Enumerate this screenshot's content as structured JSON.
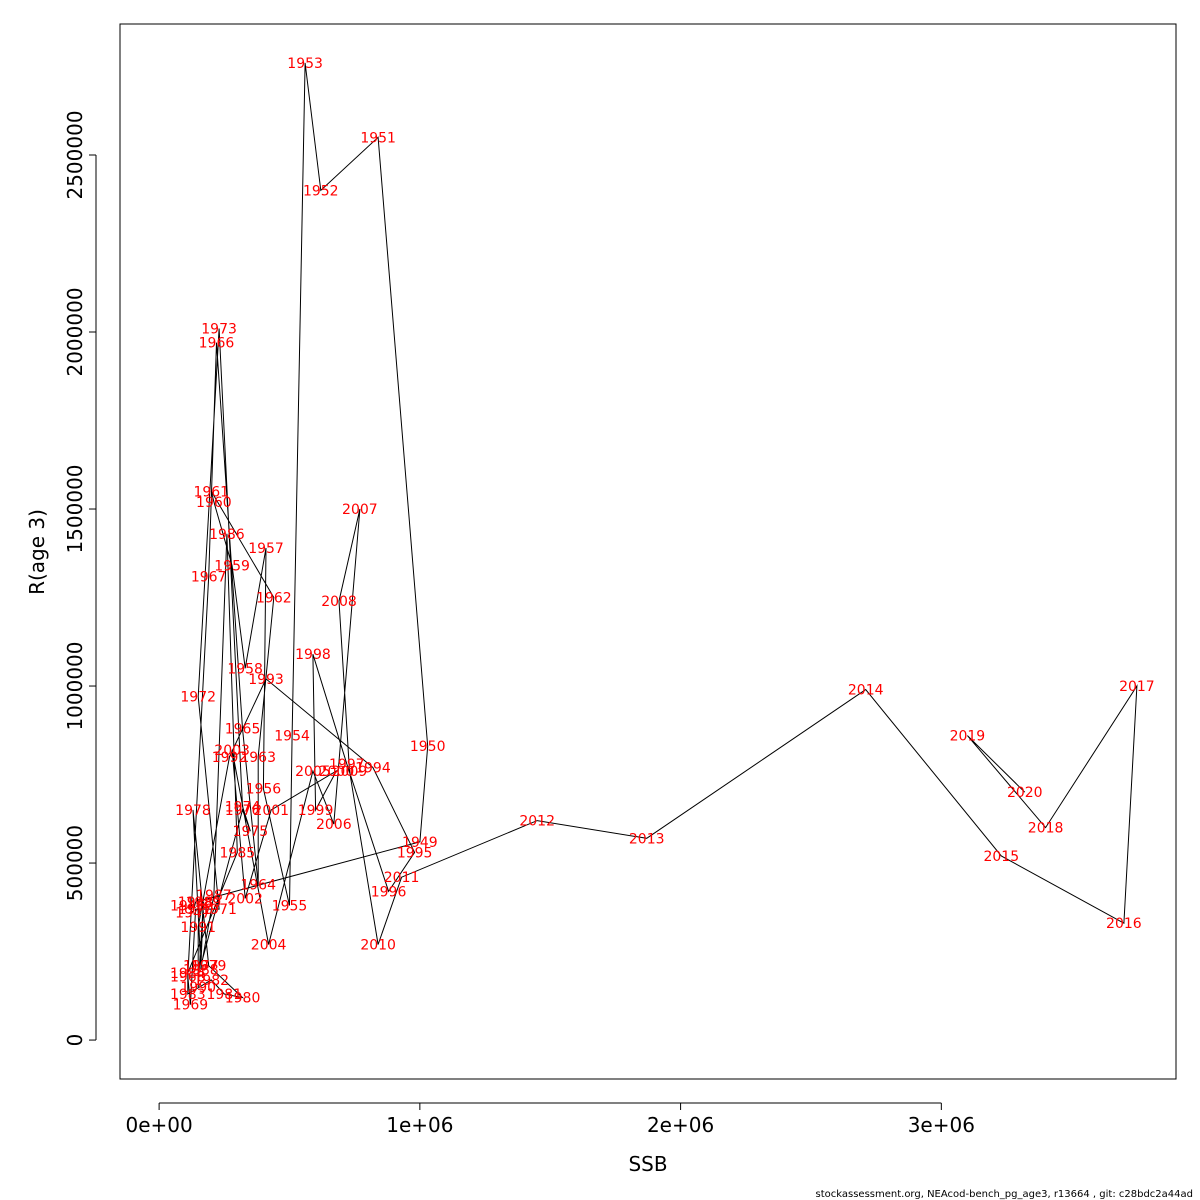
{
  "chart_data": {
    "type": "line",
    "xlabel": "SSB",
    "ylabel": "R(age 3)",
    "xlim": [
      -150000,
      3900000
    ],
    "ylim": [
      -110000,
      2870000
    ],
    "x_ticks": [
      {
        "value": 0,
        "label": "0e+00"
      },
      {
        "value": 1000000,
        "label": "1e+06"
      },
      {
        "value": 2000000,
        "label": "2e+06"
      },
      {
        "value": 3000000,
        "label": "3e+06"
      }
    ],
    "y_ticks": [
      {
        "value": 0,
        "label": "0"
      },
      {
        "value": 500000,
        "label": "500000"
      },
      {
        "value": 1000000,
        "label": "1000000"
      },
      {
        "value": 1500000,
        "label": "1500000"
      },
      {
        "value": 2000000,
        "label": "2000000"
      },
      {
        "value": 2500000,
        "label": "2500000"
      }
    ],
    "points": [
      {
        "year": "1946",
        "x": 110000,
        "y": 380000
      },
      {
        "year": "1947",
        "x": 130000,
        "y": 360000
      },
      {
        "year": "1948",
        "x": 140000,
        "y": 390000
      },
      {
        "year": "1949",
        "x": 1000000,
        "y": 560000
      },
      {
        "year": "1950",
        "x": 1030000,
        "y": 830000
      },
      {
        "year": "1951",
        "x": 840000,
        "y": 2550000
      },
      {
        "year": "1952",
        "x": 620000,
        "y": 2400000
      },
      {
        "year": "1953",
        "x": 560000,
        "y": 2760000
      },
      {
        "year": "1954",
        "x": 510000,
        "y": 860000
      },
      {
        "year": "1955",
        "x": 500000,
        "y": 380000
      },
      {
        "year": "1956",
        "x": 400000,
        "y": 710000
      },
      {
        "year": "1957",
        "x": 410000,
        "y": 1390000
      },
      {
        "year": "1958",
        "x": 330000,
        "y": 1050000
      },
      {
        "year": "1959",
        "x": 280000,
        "y": 1340000
      },
      {
        "year": "1960",
        "x": 210000,
        "y": 1520000
      },
      {
        "year": "1961",
        "x": 200000,
        "y": 1550000
      },
      {
        "year": "1962",
        "x": 440000,
        "y": 1250000
      },
      {
        "year": "1963",
        "x": 380000,
        "y": 800000
      },
      {
        "year": "1964",
        "x": 380000,
        "y": 440000
      },
      {
        "year": "1965",
        "x": 320000,
        "y": 880000
      },
      {
        "year": "1966",
        "x": 220000,
        "y": 1970000
      },
      {
        "year": "1967",
        "x": 190000,
        "y": 1310000
      },
      {
        "year": "1968",
        "x": 110000,
        "y": 180000
      },
      {
        "year": "1969",
        "x": 120000,
        "y": 100000
      },
      {
        "year": "1970",
        "x": 140000,
        "y": 370000
      },
      {
        "year": "1971",
        "x": 230000,
        "y": 370000
      },
      {
        "year": "1972",
        "x": 150000,
        "y": 970000
      },
      {
        "year": "1973",
        "x": 230000,
        "y": 2010000
      },
      {
        "year": "1974",
        "x": 320000,
        "y": 660000
      },
      {
        "year": "1975",
        "x": 350000,
        "y": 590000
      },
      {
        "year": "1976",
        "x": 320000,
        "y": 650000
      },
      {
        "year": "1977",
        "x": 160000,
        "y": 210000
      },
      {
        "year": "1978",
        "x": 130000,
        "y": 650000
      },
      {
        "year": "1979",
        "x": 190000,
        "y": 210000
      },
      {
        "year": "1980",
        "x": 320000,
        "y": 120000
      },
      {
        "year": "1981",
        "x": 250000,
        "y": 130000
      },
      {
        "year": "1982",
        "x": 200000,
        "y": 170000
      },
      {
        "year": "1983",
        "x": 110000,
        "y": 130000
      },
      {
        "year": "1984",
        "x": 110000,
        "y": 190000
      },
      {
        "year": "1985",
        "x": 300000,
        "y": 530000
      },
      {
        "year": "1986",
        "x": 260000,
        "y": 1430000
      },
      {
        "year": "1987",
        "x": 210000,
        "y": 410000
      },
      {
        "year": "1988",
        "x": 160000,
        "y": 200000
      },
      {
        "year": "1989",
        "x": 170000,
        "y": 390000
      },
      {
        "year": "1990",
        "x": 150000,
        "y": 150000
      },
      {
        "year": "1991",
        "x": 150000,
        "y": 320000
      },
      {
        "year": "1992",
        "x": 270000,
        "y": 800000
      },
      {
        "year": "1993",
        "x": 410000,
        "y": 1020000
      },
      {
        "year": "1994",
        "x": 820000,
        "y": 770000
      },
      {
        "year": "1995",
        "x": 980000,
        "y": 530000
      },
      {
        "year": "1996",
        "x": 880000,
        "y": 420000
      },
      {
        "year": "1997",
        "x": 720000,
        "y": 780000
      },
      {
        "year": "1998",
        "x": 590000,
        "y": 1090000
      },
      {
        "year": "1999",
        "x": 600000,
        "y": 650000
      },
      {
        "year": "2000",
        "x": 680000,
        "y": 760000
      },
      {
        "year": "2001",
        "x": 430000,
        "y": 650000
      },
      {
        "year": "2002",
        "x": 330000,
        "y": 400000
      },
      {
        "year": "2003",
        "x": 280000,
        "y": 820000
      },
      {
        "year": "2004",
        "x": 420000,
        "y": 270000
      },
      {
        "year": "2005",
        "x": 590000,
        "y": 760000
      },
      {
        "year": "2006",
        "x": 670000,
        "y": 610000
      },
      {
        "year": "2007",
        "x": 770000,
        "y": 1500000
      },
      {
        "year": "2008",
        "x": 690000,
        "y": 1240000
      },
      {
        "year": "2009",
        "x": 730000,
        "y": 760000
      },
      {
        "year": "2010",
        "x": 840000,
        "y": 270000
      },
      {
        "year": "2011",
        "x": 930000,
        "y": 460000
      },
      {
        "year": "2012",
        "x": 1450000,
        "y": 620000
      },
      {
        "year": "2013",
        "x": 1870000,
        "y": 570000
      },
      {
        "year": "2014",
        "x": 2710000,
        "y": 990000
      },
      {
        "year": "2015",
        "x": 3230000,
        "y": 520000
      },
      {
        "year": "2016",
        "x": 3700000,
        "y": 330000
      },
      {
        "year": "2017",
        "x": 3750000,
        "y": 1000000
      },
      {
        "year": "2018",
        "x": 3400000,
        "y": 600000
      },
      {
        "year": "2019",
        "x": 3100000,
        "y": 860000
      },
      {
        "year": "2020",
        "x": 3320000,
        "y": 700000
      }
    ],
    "line_color": "#000000",
    "label_color": "#ff0000",
    "grid": false,
    "legend": "none"
  },
  "footer": "stockassessment.org, NEAcod-bench_pg_age3, r13664 , git: c28bdc2a44ad"
}
